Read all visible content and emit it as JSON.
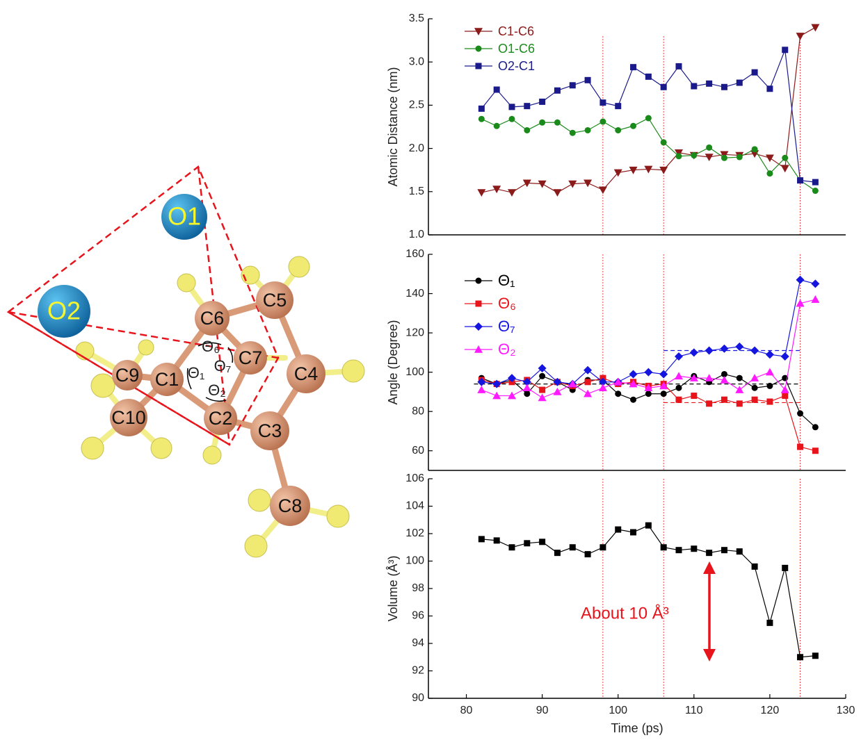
{
  "chart_data": [
    {
      "type": "line",
      "ylabel": "Atomic Distance (nm)",
      "legend": "upper left",
      "xlim": [
        75,
        130
      ],
      "ylim": [
        1.0,
        3.5
      ],
      "yticks": [
        {
          "value": 1.0,
          "label": "1.0"
        },
        {
          "value": 1.5,
          "label": "1.5"
        },
        {
          "value": 2.0,
          "label": "2.0"
        },
        {
          "value": 2.5,
          "label": "2.5"
        },
        {
          "value": 3.0,
          "label": "3.0"
        },
        {
          "value": 3.5,
          "label": "3.5"
        }
      ],
      "vlines": [
        98,
        106,
        124
      ],
      "x": [
        82,
        84,
        86,
        88,
        90,
        92,
        94,
        96,
        98,
        100,
        102,
        104,
        106,
        108,
        110,
        112,
        114,
        116,
        118,
        120,
        122,
        124,
        126
      ],
      "series": [
        {
          "name": "C1-C6",
          "color": "#8b1a1a",
          "marker": "triangle-down",
          "values": [
            1.49,
            1.53,
            1.49,
            1.6,
            1.59,
            1.49,
            1.59,
            1.6,
            1.52,
            1.72,
            1.75,
            1.76,
            1.75,
            1.95,
            1.92,
            1.9,
            1.93,
            1.92,
            1.94,
            1.89,
            1.77,
            3.3,
            3.4
          ]
        },
        {
          "name": "O1-C6",
          "color": "#1a8a1a",
          "marker": "circle",
          "values": [
            2.34,
            2.26,
            2.34,
            2.21,
            2.3,
            2.3,
            2.18,
            2.21,
            2.31,
            2.21,
            2.26,
            2.35,
            2.07,
            1.91,
            1.92,
            2.01,
            1.89,
            1.9,
            1.99,
            1.71,
            1.89,
            1.63,
            1.51
          ]
        },
        {
          "name": "O2-C1",
          "color": "#1a1a8b",
          "marker": "square",
          "values": [
            2.46,
            2.68,
            2.48,
            2.49,
            2.54,
            2.67,
            2.73,
            2.79,
            2.53,
            2.49,
            2.94,
            2.83,
            2.71,
            2.95,
            2.72,
            2.75,
            2.71,
            2.76,
            2.88,
            2.69,
            3.14,
            1.63,
            1.61
          ]
        }
      ]
    },
    {
      "type": "line",
      "ylabel": "Angle (Degree)",
      "legend": "upper left",
      "xlim": [
        75,
        130
      ],
      "ylim": [
        50,
        160
      ],
      "yticks": [
        60,
        80,
        100,
        120,
        140,
        160
      ],
      "vlines": [
        98,
        106,
        124
      ],
      "ref_lines": [
        {
          "y": 94,
          "x": [
            81,
            124
          ],
          "color": "#000000"
        },
        {
          "y": 84.5,
          "x": [
            106,
            124
          ],
          "color": "#e8141c"
        },
        {
          "y": 111,
          "x": [
            106,
            124
          ],
          "color": "#1515e0"
        }
      ],
      "x": [
        82,
        84,
        86,
        88,
        90,
        92,
        94,
        96,
        98,
        100,
        102,
        104,
        106,
        108,
        110,
        112,
        114,
        116,
        118,
        120,
        122,
        124,
        126
      ],
      "series": [
        {
          "name": "Θ₁",
          "color": "#000000",
          "marker": "circle",
          "values": [
            97,
            94,
            96,
            89,
            98,
            95,
            91,
            96,
            96,
            89,
            86,
            89,
            89,
            92,
            98,
            95,
            99,
            97,
            92,
            93,
            97,
            79,
            72
          ]
        },
        {
          "name": "Θ₆",
          "color": "#e8141c",
          "marker": "square",
          "values": [
            96,
            94,
            95,
            96,
            91,
            95,
            93,
            95,
            97,
            94,
            95,
            93,
            94,
            86,
            88,
            84,
            86,
            84,
            86,
            85,
            88,
            62,
            60
          ]
        },
        {
          "name": "Θ₇",
          "color": "#1515e0",
          "marker": "diamond",
          "values": [
            95,
            94,
            97,
            95,
            102,
            95,
            94,
            101,
            95,
            95,
            99,
            100,
            99,
            108,
            110,
            111,
            112,
            113,
            111,
            109,
            108,
            147,
            145
          ]
        },
        {
          "name": "Θ₂",
          "color": "#ff1aff",
          "marker": "triangle-up",
          "values": [
            91,
            88,
            88,
            92,
            87,
            90,
            94,
            89,
            92,
            95,
            94,
            92,
            93,
            98,
            97,
            97,
            96,
            91,
            97,
            100,
            91,
            135,
            137
          ]
        }
      ]
    },
    {
      "type": "line",
      "ylabel": "Volume (Å³)",
      "xlabel": "Time (ps)",
      "annotation": "About 10 Å³",
      "xlim": [
        75,
        130
      ],
      "ylim": [
        90,
        106
      ],
      "xticks": [
        80,
        90,
        100,
        110,
        120,
        130
      ],
      "yticks": [
        90,
        92,
        94,
        96,
        98,
        100,
        102,
        104,
        106
      ],
      "vlines": [
        98,
        106,
        124
      ],
      "x": [
        82,
        84,
        86,
        88,
        90,
        92,
        94,
        96,
        98,
        100,
        102,
        104,
        106,
        108,
        110,
        112,
        114,
        116,
        118,
        120,
        122,
        124,
        126
      ],
      "series": [
        {
          "color": "#000000",
          "marker": "square",
          "values": [
            101.6,
            101.5,
            101.0,
            101.3,
            101.4,
            100.6,
            101.0,
            100.5,
            101.0,
            102.3,
            102.1,
            102.6,
            101.0,
            100.8,
            100.9,
            100.6,
            100.8,
            100.7,
            99.6,
            95.5,
            99.5,
            93.0,
            93.1
          ]
        }
      ]
    }
  ],
  "diagram": {
    "atoms": [
      "O1",
      "O2",
      "C1",
      "C2",
      "C3",
      "C4",
      "C5",
      "C6",
      "C7",
      "C8",
      "C9",
      "C10"
    ],
    "angles": [
      "Θ₁",
      "Θ₂",
      "Θ₆",
      "Θ₇"
    ]
  }
}
